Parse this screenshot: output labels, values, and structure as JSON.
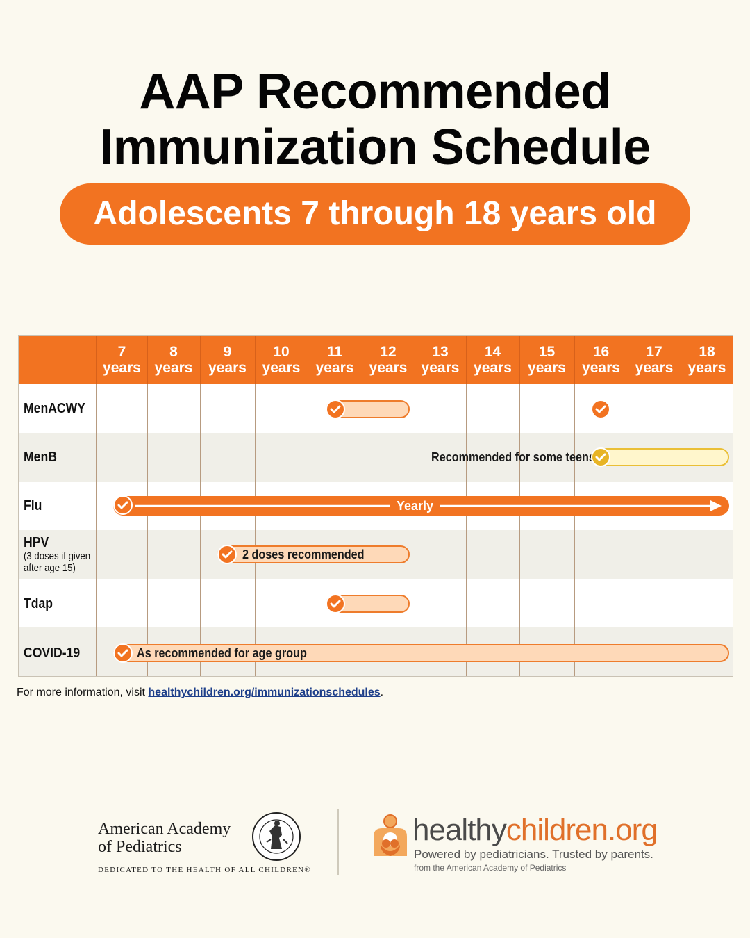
{
  "title": {
    "line1": "AAP Recommended",
    "line2": "Immunization Schedule"
  },
  "subtitle": "Adolescents 7 through 18 years old",
  "colors": {
    "accent": "#f27321",
    "light_bar": "#fed9b8",
    "menb_bar": "#fff6cc",
    "menb_check": "#e7b425",
    "link": "#1e3f8a"
  },
  "table": {
    "columns": [
      {
        "num": "7",
        "unit": "years"
      },
      {
        "num": "8",
        "unit": "years"
      },
      {
        "num": "9",
        "unit": "years"
      },
      {
        "num": "10",
        "unit": "years"
      },
      {
        "num": "11",
        "unit": "years"
      },
      {
        "num": "12",
        "unit": "years"
      },
      {
        "num": "13",
        "unit": "years"
      },
      {
        "num": "14",
        "unit": "years"
      },
      {
        "num": "15",
        "unit": "years"
      },
      {
        "num": "16",
        "unit": "years"
      },
      {
        "num": "17",
        "unit": "years"
      },
      {
        "num": "18",
        "unit": "years"
      }
    ],
    "rows": [
      {
        "label": "MenACWY"
      },
      {
        "label": "MenB",
        "bar_text": "Recommended for some teens"
      },
      {
        "label": "Flu",
        "bar_text": "Yearly"
      },
      {
        "label": "HPV",
        "note_line1": "(3 doses if given",
        "note_line2": "after age 15)",
        "bar_text": "2 doses recommended"
      },
      {
        "label": "Tdap"
      },
      {
        "label": "COVID-19",
        "bar_text": "As recommended for age group"
      }
    ]
  },
  "info": {
    "prefix": "For more information, visit ",
    "link": "healthychildren.org/immunizationschedules",
    "suffix": "."
  },
  "footer": {
    "aap_line1": "American Academy",
    "aap_line2": "of Pediatrics",
    "aap_tagline": "DEDICATED TO THE HEALTH OF ALL CHILDREN®",
    "aap_seal_icon": "aap-seal-icon",
    "hc_brand_part1": "healthy",
    "hc_brand_part2": "children.org",
    "hc_tagline": "Powered by pediatricians. Trusted by parents.",
    "hc_from": "from the American Academy of Pediatrics",
    "hc_logo_icon": "family-hug-icon"
  }
}
